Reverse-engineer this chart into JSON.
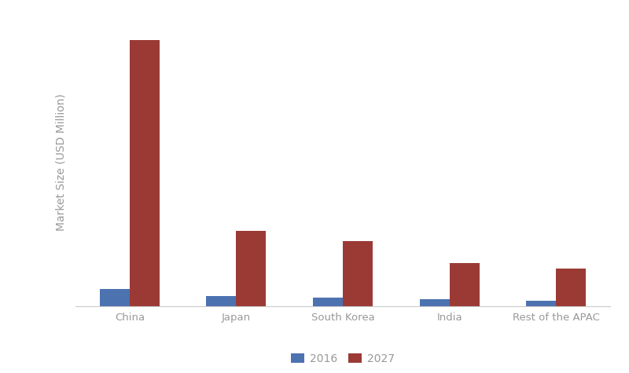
{
  "categories": [
    "China",
    "Japan",
    "South Korea",
    "India",
    "Rest of the APAC"
  ],
  "values_2016": [
    1200,
    700,
    600,
    450,
    380
  ],
  "values_2027": [
    18500,
    5200,
    4500,
    3000,
    2600
  ],
  "color_2016": "#4C72B0",
  "color_2027": "#9B3A35",
  "ylabel": "Market Size (USD Million)",
  "legend_labels": [
    "2016",
    "2027"
  ],
  "bar_width": 0.28,
  "background_color": "#ffffff",
  "ylabel_color": "#999999",
  "tick_color": "#999999",
  "ylim": [
    0,
    20000
  ],
  "yticks": [],
  "figsize": [
    8.0,
    4.75
  ],
  "dpi": 100
}
